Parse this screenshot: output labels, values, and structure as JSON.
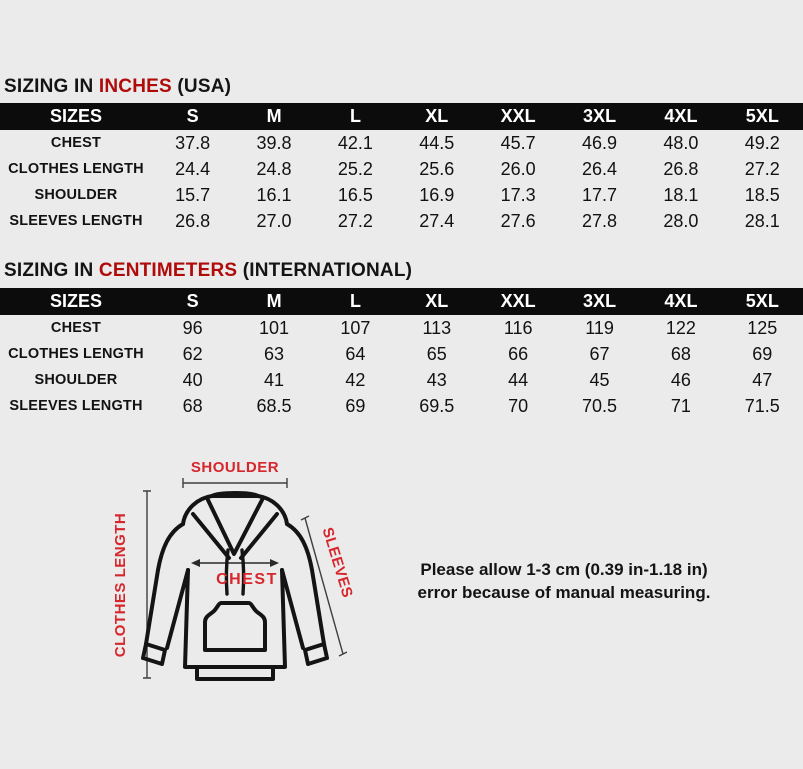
{
  "colors": {
    "background": "#ebebeb",
    "title_accent_red": "#b00b0b",
    "diagram_label_red": "#d7262c",
    "table_header_bg": "#0c0c0c",
    "table_header_text": "#ffffff",
    "outline_black": "#141414"
  },
  "titles": {
    "inches": {
      "prefix": "SIZING IN ",
      "unit": "INCHES",
      "suffix": " (USA)"
    },
    "centimeters": {
      "prefix": "SIZING IN ",
      "unit": "CENTIMETERS",
      "suffix": " (INTERNATIONAL)"
    }
  },
  "tables": {
    "inches": {
      "header": [
        "SIZES",
        "S",
        "M",
        "L",
        "XL",
        "XXL",
        "3XL",
        "4XL",
        "5XL"
      ],
      "rows": [
        {
          "label": "CHEST",
          "values": [
            "37.8",
            "39.8",
            "42.1",
            "44.5",
            "45.7",
            "46.9",
            "48.0",
            "49.2"
          ]
        },
        {
          "label": "CLOTHES LENGTH",
          "values": [
            "24.4",
            "24.8",
            "25.2",
            "25.6",
            "26.0",
            "26.4",
            "26.8",
            "27.2"
          ]
        },
        {
          "label": "SHOULDER",
          "values": [
            "15.7",
            "16.1",
            "16.5",
            "16.9",
            "17.3",
            "17.7",
            "18.1",
            "18.5"
          ]
        },
        {
          "label": "SLEEVES LENGTH",
          "values": [
            "26.8",
            "27.0",
            "27.2",
            "27.4",
            "27.6",
            "27.8",
            "28.0",
            "28.1"
          ]
        }
      ]
    },
    "centimeters": {
      "header": [
        "SIZES",
        "S",
        "M",
        "L",
        "XL",
        "XXL",
        "3XL",
        "4XL",
        "5XL"
      ],
      "rows": [
        {
          "label": "CHEST",
          "values": [
            "96",
            "101",
            "107",
            "113",
            "116",
            "119",
            "122",
            "125"
          ]
        },
        {
          "label": "CLOTHES LENGTH",
          "values": [
            "62",
            "63",
            "64",
            "65",
            "66",
            "67",
            "68",
            "69"
          ]
        },
        {
          "label": "SHOULDER",
          "values": [
            "40",
            "41",
            "42",
            "43",
            "44",
            "45",
            "46",
            "47"
          ]
        },
        {
          "label": "SLEEVES LENGTH",
          "values": [
            "68",
            "68.5",
            "69",
            "69.5",
            "70",
            "70.5",
            "71",
            "71.5"
          ]
        }
      ]
    }
  },
  "diagram": {
    "labels": {
      "shoulder": "SHOULDER",
      "clothes_length": "CLOTHES LENGTH",
      "sleeves": "SLEEVES",
      "chest": "CHEST"
    }
  },
  "note": {
    "line1": "Please allow 1-3 cm (0.39 in-1.18 in)",
    "line2": "error because of manual measuring."
  }
}
